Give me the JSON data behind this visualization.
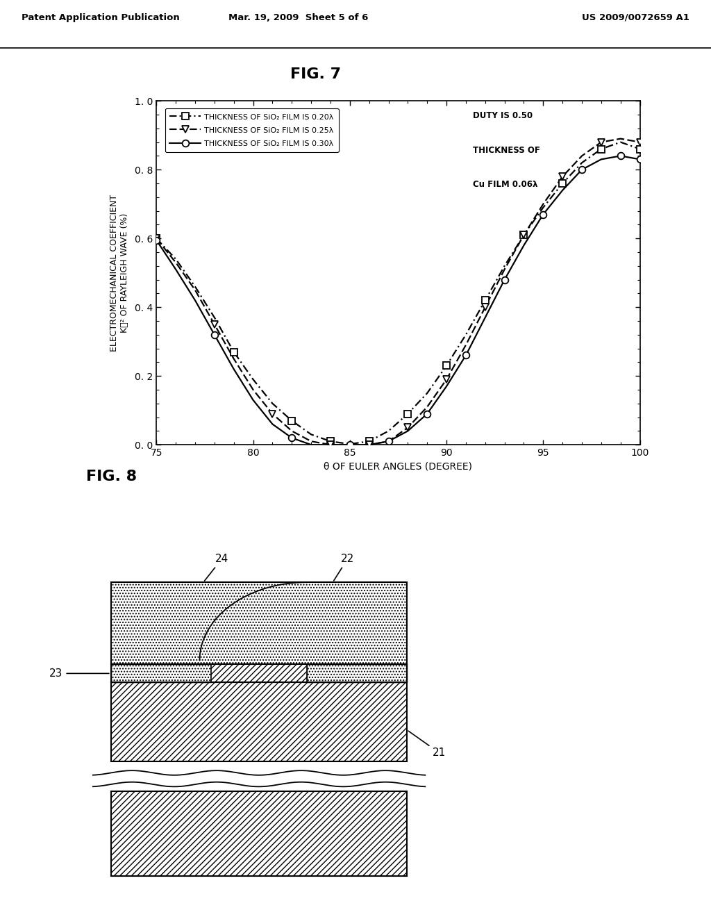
{
  "header_left": "Patent Application Publication",
  "header_mid": "Mar. 19, 2009  Sheet 5 of 6",
  "header_right": "US 2009/0072659 A1",
  "fig7_title": "FIG. 7",
  "fig8_title": "FIG. 8",
  "xlabel": "θ OF EULER ANGLES (DEGREE)",
  "ylabel_line1": "ELECTROMECHANICAL COEFFICIENT",
  "ylabel_line2": "Kᴯ² OF RAYLEIGH WAVE (%)",
  "xlim": [
    75,
    100
  ],
  "ylim": [
    0.0,
    1.0
  ],
  "xticks": [
    75,
    80,
    85,
    90,
    95,
    100
  ],
  "yticks": [
    0.0,
    0.2,
    0.4,
    0.6,
    0.8,
    1.0
  ],
  "ytick_labels": [
    "0. 0",
    "0. 2",
    "0. 4",
    "0. 6",
    "0. 8",
    "1. 0"
  ],
  "xtick_labels": [
    "75",
    "80",
    "85",
    "90",
    "95",
    "100"
  ],
  "annotation1": "DUTY IS 0.50",
  "annotation2": "THICKNESS OF",
  "annotation3": "Cu FILM 0.06λ",
  "series": [
    {
      "label": "THICKNESS OF SiO₂ FILM IS 0.20λ",
      "style": "dash-dot",
      "marker": "s",
      "x": [
        75,
        76,
        77,
        78,
        79,
        80,
        81,
        82,
        83,
        84,
        85,
        86,
        87,
        88,
        89,
        90,
        91,
        92,
        93,
        94,
        95,
        96,
        97,
        98,
        99,
        100
      ],
      "y": [
        0.6,
        0.54,
        0.46,
        0.37,
        0.27,
        0.19,
        0.12,
        0.07,
        0.03,
        0.01,
        0.002,
        0.01,
        0.04,
        0.09,
        0.15,
        0.23,
        0.32,
        0.42,
        0.52,
        0.61,
        0.69,
        0.76,
        0.82,
        0.86,
        0.88,
        0.86
      ]
    },
    {
      "label": "THICKNESS OF SiO₂ FILM IS 0.25λ",
      "style": "dashed",
      "marker": "v",
      "x": [
        75,
        76,
        77,
        78,
        79,
        80,
        81,
        82,
        83,
        84,
        85,
        86,
        87,
        88,
        89,
        90,
        91,
        92,
        93,
        94,
        95,
        96,
        97,
        98,
        99,
        100
      ],
      "y": [
        0.6,
        0.53,
        0.45,
        0.35,
        0.25,
        0.16,
        0.09,
        0.04,
        0.01,
        0.0,
        0.0,
        0.0,
        0.01,
        0.05,
        0.11,
        0.19,
        0.29,
        0.4,
        0.51,
        0.61,
        0.7,
        0.78,
        0.84,
        0.88,
        0.89,
        0.88
      ]
    },
    {
      "label": "THICKNESS OF SiO₂ FILM IS 0.30λ",
      "style": "solid",
      "marker": "o",
      "x": [
        75,
        76,
        77,
        78,
        79,
        80,
        81,
        82,
        83,
        84,
        85,
        86,
        87,
        88,
        89,
        90,
        91,
        92,
        93,
        94,
        95,
        96,
        97,
        98,
        99,
        100
      ],
      "y": [
        0.595,
        0.51,
        0.42,
        0.32,
        0.22,
        0.13,
        0.06,
        0.02,
        0.0,
        0.0,
        0.0,
        0.0,
        0.01,
        0.04,
        0.09,
        0.17,
        0.26,
        0.37,
        0.48,
        0.58,
        0.67,
        0.74,
        0.8,
        0.83,
        0.84,
        0.83
      ]
    }
  ],
  "background": "#ffffff",
  "text_color": "#000000"
}
